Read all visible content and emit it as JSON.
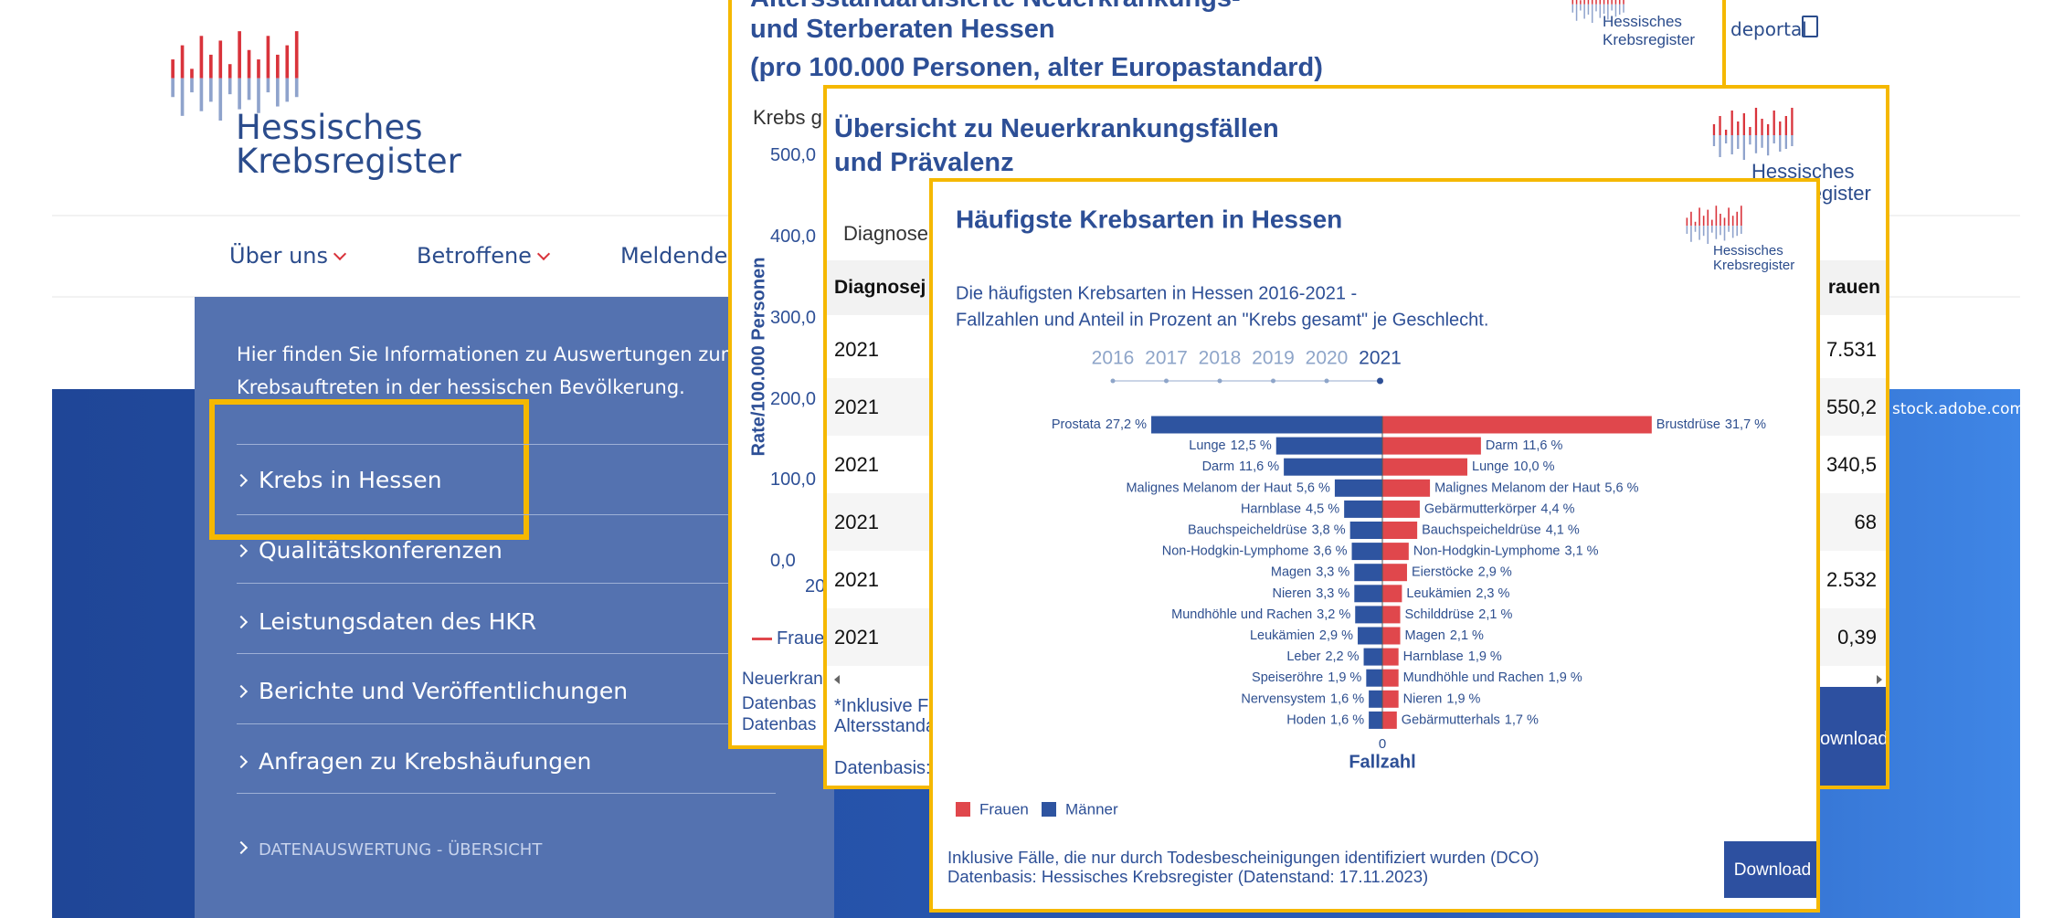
{
  "site": {
    "logo": [
      "Hessisches",
      "Krebsregister"
    ],
    "nav": [
      "Über uns",
      "Betroffene",
      "Meldende"
    ],
    "top_link": "deportal",
    "intro": [
      "Hier finden Sie Informationen zu Auswertungen zum",
      "Krebsauftreten in der hessischen Bevölkerung."
    ],
    "menu": [
      "Krebs in Hessen",
      "Qualitätskonferenzen",
      "Leistungsdaten des HKR",
      "Berichte und Veröffentlichungen",
      "Anfragen zu Krebshäufungen"
    ],
    "submenu": "DATENAUSWERTUNG - ÜBERSICHT",
    "image_credit": "stock.adobe.com"
  },
  "popup1": {
    "title_lines": [
      "Altersstandardisierte Neuerkrankungs-",
      "und Sterberaten Hessen",
      "(pro 100.000 Personen, alter Europastandard)"
    ],
    "logo": [
      "Hessisches",
      "Krebsregister"
    ],
    "subtitle": "Krebs g",
    "y_axis_label": "Rate/100.000 Personen",
    "yticks": [
      "500,0",
      "400,0",
      "300,0",
      "200,0",
      "100,0",
      "0,0"
    ],
    "x_first": "20",
    "legend": "Fraue",
    "footer": [
      "Neuerkran",
      "Datenbas",
      "Datenbas"
    ]
  },
  "popup2": {
    "title_lines": [
      "Übersicht zu Neuerkrankungsfällen",
      "und Prävalenz"
    ],
    "logo": [
      "Hessisches",
      "Krebsregister"
    ],
    "tab": "Diagnose",
    "table": {
      "header": [
        "Diagnosej",
        "rauen"
      ],
      "rows": [
        [
          "2021",
          "7.531"
        ],
        [
          "2021",
          "550,2"
        ],
        [
          "2021",
          "340,5"
        ],
        [
          "2021",
          "68"
        ],
        [
          "2021",
          "2.532"
        ],
        [
          "2021",
          "0,39"
        ]
      ]
    },
    "footnote": [
      "*Inklusive Fä",
      "Altersstanda"
    ],
    "source": "Datenbasis:",
    "download": "ownload"
  },
  "popup3": {
    "title": "Häufigste Krebsarten in Hessen",
    "logo": [
      "Hessisches",
      "Krebsregister"
    ],
    "description": [
      "Die häufigsten Krebsarten in Hessen 2016-2021 -",
      "Fallzahlen und Anteil in Prozent an \"Krebs gesamt\" je Geschlecht."
    ],
    "years": [
      "2016",
      "2017",
      "2018",
      "2019",
      "2020",
      "2021"
    ],
    "selected_year_index": 5,
    "chart_data": {
      "type": "butterfly",
      "x_label": "Fallzahl",
      "xticks": [
        0
      ],
      "series": [
        {
          "name": "Männer",
          "color": "#2e54a0",
          "side": "left",
          "categories": [
            "Prostata",
            "Lunge",
            "Darm",
            "Malignes Melanom der Haut",
            "Harnblase",
            "Bauchspeicheldrüse",
            "Non-Hodgkin-Lymphome",
            "Magen",
            "Nieren",
            "Mundhöhle und Rachen",
            "Leukämien",
            "Leber",
            "Speiseröhre",
            "Nervensystem",
            "Hoden"
          ],
          "values": [
            27.2,
            12.5,
            11.6,
            5.6,
            4.5,
            3.8,
            3.6,
            3.3,
            3.3,
            3.2,
            2.9,
            2.2,
            1.9,
            1.6,
            1.6
          ],
          "value_labels": [
            "27,2 %",
            "12,5 %",
            "11,6 %",
            "5,6 %",
            "4,5 %",
            "3,8 %",
            "3,6 %",
            "3,3 %",
            "3,3 %",
            "3,2 %",
            "2,9 %",
            "2,2 %",
            "1,9 %",
            "1,6 %",
            "1,6 %"
          ]
        },
        {
          "name": "Frauen",
          "color": "#e0474c",
          "side": "right",
          "categories": [
            "Brustdrüse",
            "Darm",
            "Lunge",
            "Malignes Melanom der Haut",
            "Gebärmutterkörper",
            "Bauchspeicheldrüse",
            "Non-Hodgkin-Lymphome",
            "Eierstöcke",
            "Leukämien",
            "Schilddrüse",
            "Magen",
            "Harnblase",
            "Mundhöhle und Rachen",
            "Nieren",
            "Gebärmutterhals"
          ],
          "values": [
            31.7,
            11.6,
            10.0,
            5.6,
            4.4,
            4.1,
            3.1,
            2.9,
            2.3,
            2.1,
            2.1,
            1.9,
            1.9,
            1.9,
            1.7
          ],
          "value_labels": [
            "31,7 %",
            "11,6 %",
            "10,0 %",
            "5,6 %",
            "4,4 %",
            "4,1 %",
            "3,1 %",
            "2,9 %",
            "2,3 %",
            "2,1 %",
            "2,1 %",
            "1,9 %",
            "1,9 %",
            "1,9 %",
            "1,7 %"
          ]
        }
      ]
    },
    "legend_order": [
      1,
      0
    ],
    "footer": [
      "Inklusive Fälle, die nur durch Todesbescheinigungen identifiziert wurden (DCO)",
      "Datenbasis: Hessisches Krebsregister (Datenstand: 17.11.2023)"
    ],
    "download": "Download"
  }
}
